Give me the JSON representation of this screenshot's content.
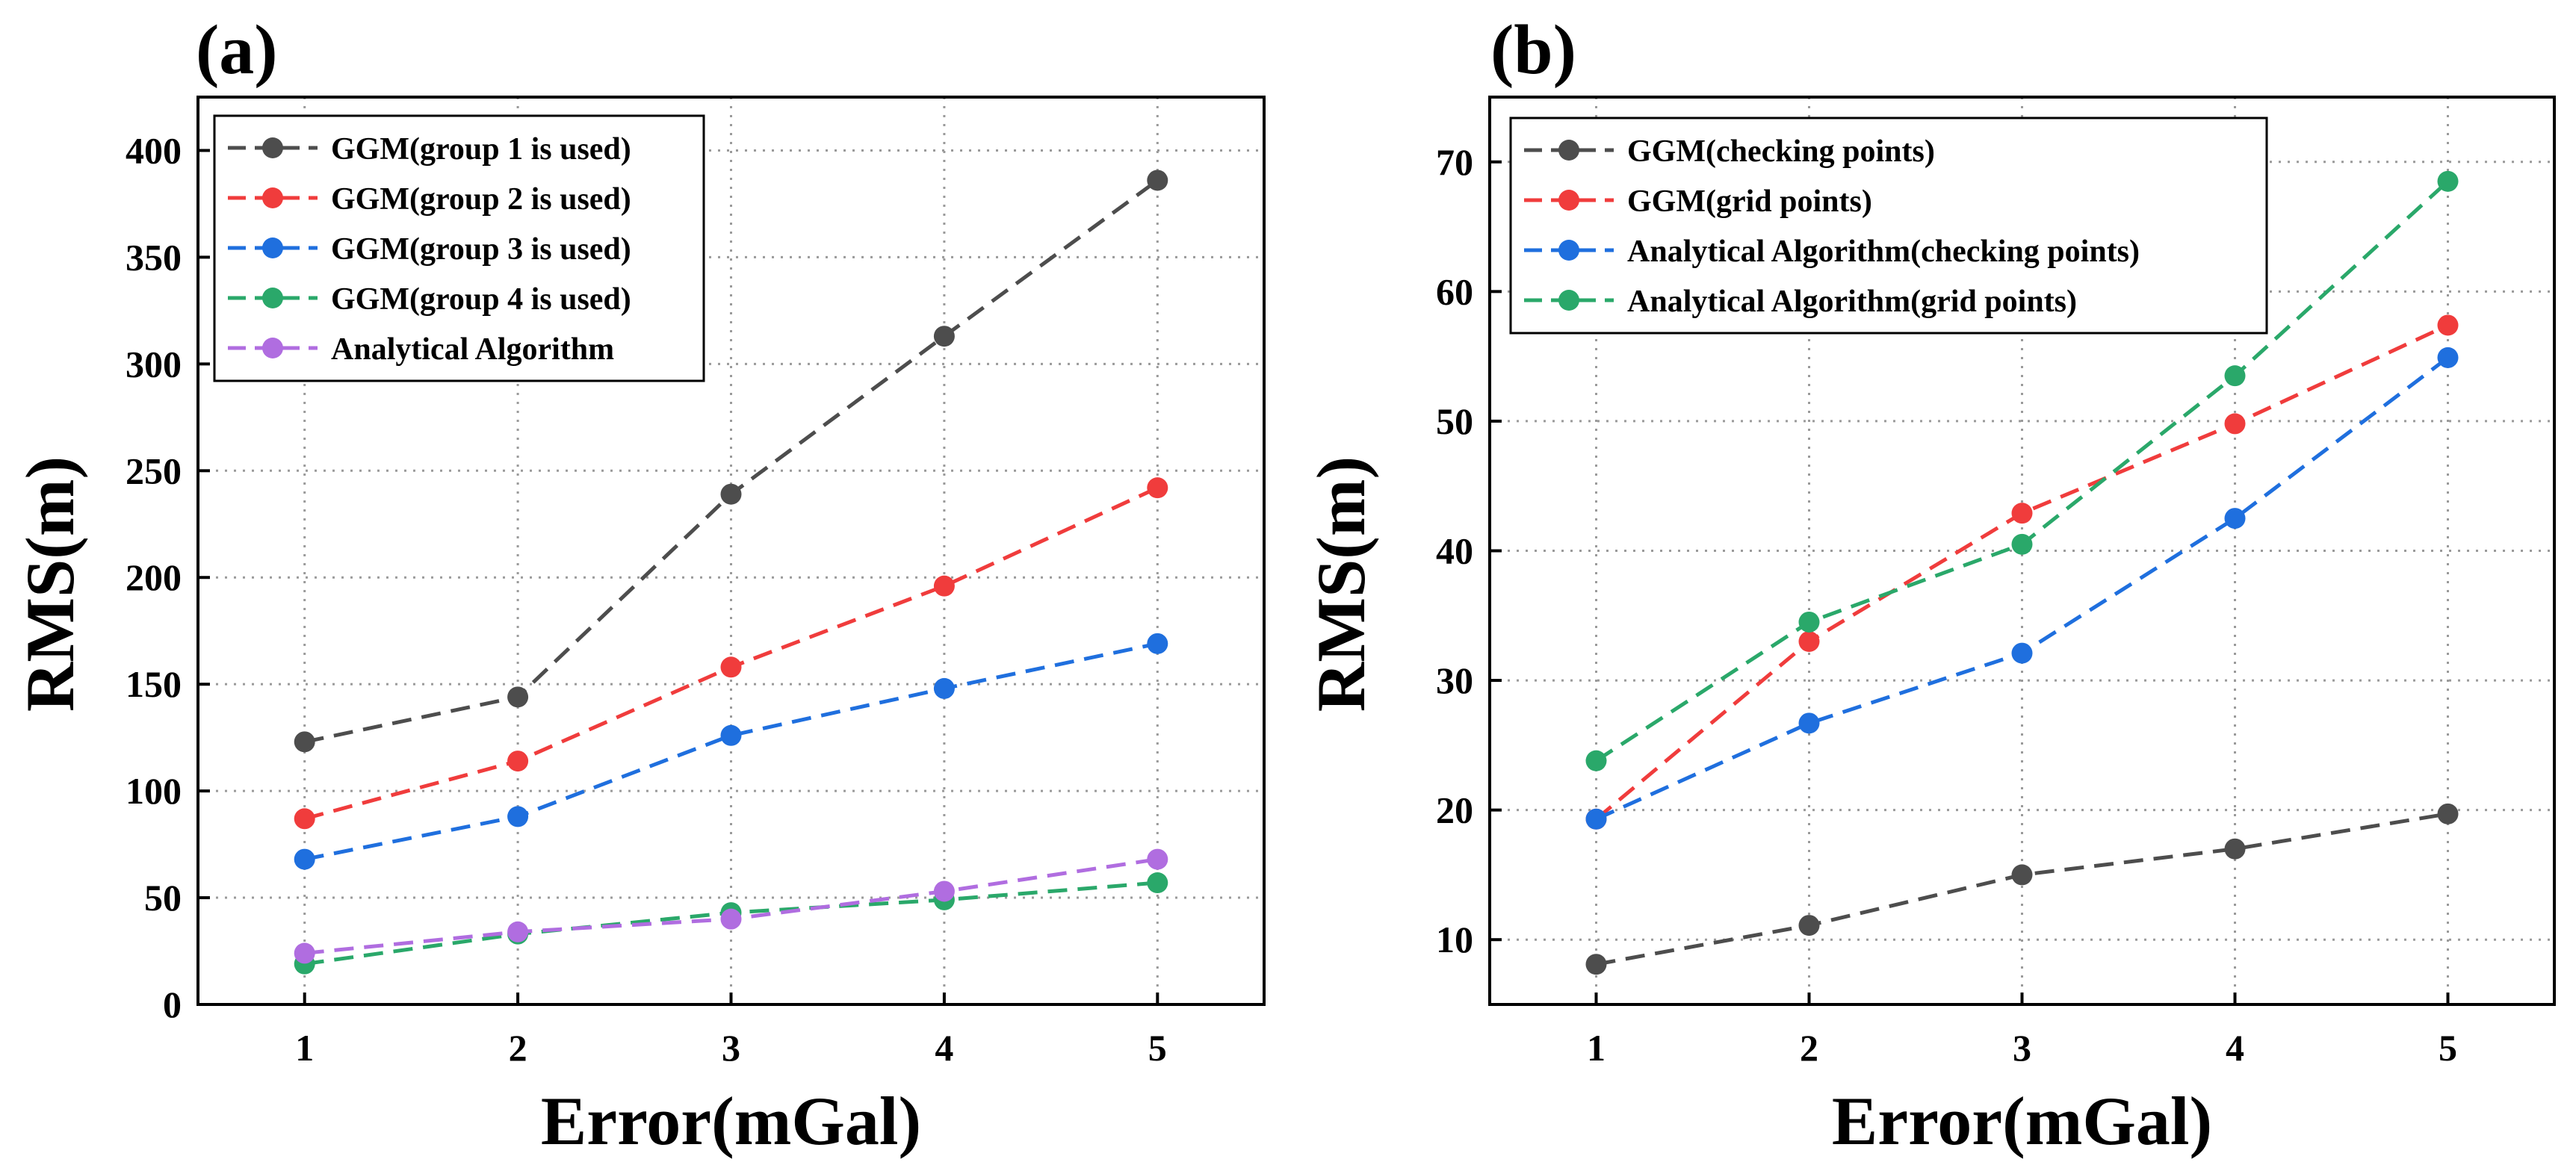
{
  "chart_data": [
    {
      "panel": "(a)",
      "type": "line",
      "xlabel": "Error(mGal)",
      "ylabel": "RMS(m)",
      "x": [
        1,
        2,
        3,
        4,
        5
      ],
      "xlim": [
        0.5,
        5.5
      ],
      "ylim": [
        0,
        425
      ],
      "xticks": [
        1,
        2,
        3,
        4,
        5
      ],
      "yticks": [
        0,
        50,
        100,
        150,
        200,
        250,
        300,
        350,
        400
      ],
      "grid": true,
      "legend_position": "top-left",
      "series": [
        {
          "name": "GGM(group 1 is used)",
          "color": "#4d4d4d",
          "values": [
            123,
            144,
            239,
            313,
            386
          ]
        },
        {
          "name": "GGM(group 2 is used)",
          "color": "#f03c3c",
          "values": [
            87,
            114,
            158,
            196,
            242
          ]
        },
        {
          "name": "GGM(group 3 is used)",
          "color": "#1f6fde",
          "values": [
            68,
            88,
            126,
            148,
            169
          ]
        },
        {
          "name": "GGM(group 4 is used)",
          "color": "#2aa86a",
          "values": [
            19,
            33,
            43,
            49,
            57
          ]
        },
        {
          "name": "Analytical Algorithm",
          "color": "#b06de0",
          "values": [
            24,
            34,
            40,
            53,
            68
          ]
        }
      ]
    },
    {
      "panel": "(b)",
      "type": "line",
      "xlabel": "Error(mGal)",
      "ylabel": "RMS(m)",
      "x": [
        1,
        2,
        3,
        4,
        5
      ],
      "xlim": [
        0.5,
        5.5
      ],
      "ylim": [
        5,
        75
      ],
      "xticks": [
        1,
        2,
        3,
        4,
        5
      ],
      "yticks": [
        10,
        20,
        30,
        40,
        50,
        60,
        70
      ],
      "grid": true,
      "legend_position": "top-left",
      "series": [
        {
          "name": "GGM(checking points)",
          "color": "#4d4d4d",
          "values": [
            8.1,
            11.1,
            15.0,
            17.0,
            19.7
          ]
        },
        {
          "name": "GGM(grid points)",
          "color": "#f03c3c",
          "values": [
            19.3,
            33.0,
            42.9,
            49.8,
            57.4
          ]
        },
        {
          "name": "Analytical Algorithm(checking points)",
          "color": "#1f6fde",
          "values": [
            19.3,
            26.7,
            32.1,
            42.5,
            54.9
          ]
        },
        {
          "name": "Analytical Algorithm(grid points)",
          "color": "#2aa86a",
          "values": [
            23.8,
            34.5,
            40.5,
            53.5,
            68.5
          ]
        }
      ]
    }
  ]
}
